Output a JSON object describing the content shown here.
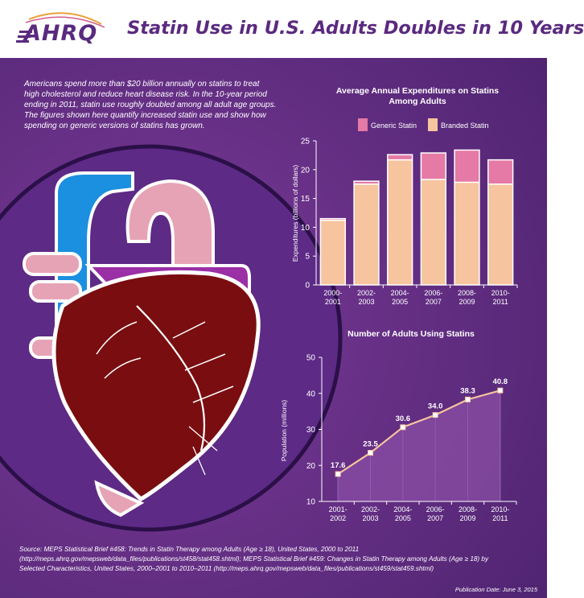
{
  "header": {
    "logo_text": "AHRQ",
    "title": "Statin Use in U.S. Adults Doubles in 10 Years"
  },
  "intro_lines": [
    "Americans spend more than $20 billion annually on statins to treat",
    "high cholesterol and reduce heart disease risk. In the 10-year period",
    "ending in 2011, statin use roughly doubled among all adult age groups.",
    "The figures shown here quantify increased statin use and show how",
    "spending on generic versions of statins has grown."
  ],
  "colors": {
    "generic": "#e47aa5",
    "branded": "#f6c49f",
    "line": "#f6c49f",
    "area": "#8a4fa6",
    "axis_text": "#ffffff"
  },
  "chart_data": [
    {
      "type": "bar",
      "stacked": true,
      "title_lines": [
        "Average Annual Expenditures on Statins",
        "Among Adults"
      ],
      "categories": [
        [
          "2000-",
          "2001"
        ],
        [
          "2002-",
          "2003"
        ],
        [
          "2004-",
          "2005"
        ],
        [
          "2006-",
          "2007"
        ],
        [
          "2008-",
          "2009"
        ],
        [
          "2010-",
          "2011"
        ]
      ],
      "ylabel": "Expenditures (billions of dollars)",
      "ylim": [
        0,
        25
      ],
      "yticks": [
        0,
        5,
        10,
        15,
        20,
        25
      ],
      "legend": [
        "Generic Statin",
        "Branded Statin"
      ],
      "legend_position": "top",
      "series": [
        {
          "name": "Branded Statin",
          "values": [
            11.2,
            17.5,
            21.7,
            18.3,
            17.8,
            17.5
          ]
        },
        {
          "name": "Generic Statin",
          "values": [
            0.3,
            0.5,
            0.9,
            4.6,
            5.6,
            4.2
          ]
        }
      ]
    },
    {
      "type": "area",
      "title": "Number of Adults Using Statins",
      "categories": [
        [
          "2001-",
          "2002"
        ],
        [
          "2002-",
          "2003"
        ],
        [
          "2004-",
          "2005"
        ],
        [
          "2006-",
          "2007"
        ],
        [
          "2008-",
          "2009"
        ],
        [
          "2010-",
          "2011"
        ]
      ],
      "ylabel": "Population (millions)",
      "ylim": [
        10,
        50
      ],
      "yticks": [
        10,
        20,
        30,
        40,
        50
      ],
      "values": [
        17.6,
        23.5,
        30.6,
        34.0,
        38.3,
        40.8
      ],
      "labels": [
        "17.6",
        "23.5",
        "30.6",
        "34.0",
        "38.3",
        "40.8"
      ]
    }
  ],
  "source_lines": [
    "Source:  MEPS Statistical Brief #458: Trends in Statin Therapy among Adults (Age ≥ 18), United States, 2000 to 2011",
    "(http://meps.ahrq.gov/mepsweb/data_files/publications/st458/stat458.shtml); MEPS Statistical Brief #459: Changes in Statin Therapy among Adults (Age ≥ 18) by",
    "Selected Characteristics, United States, 2000–2001 to 2010–2011 (http://meps.ahrq.gov/mepsweb/data_files/publications/st459/stat459.shtml)"
  ],
  "publication_date": "Publication Date: June 3, 2015"
}
